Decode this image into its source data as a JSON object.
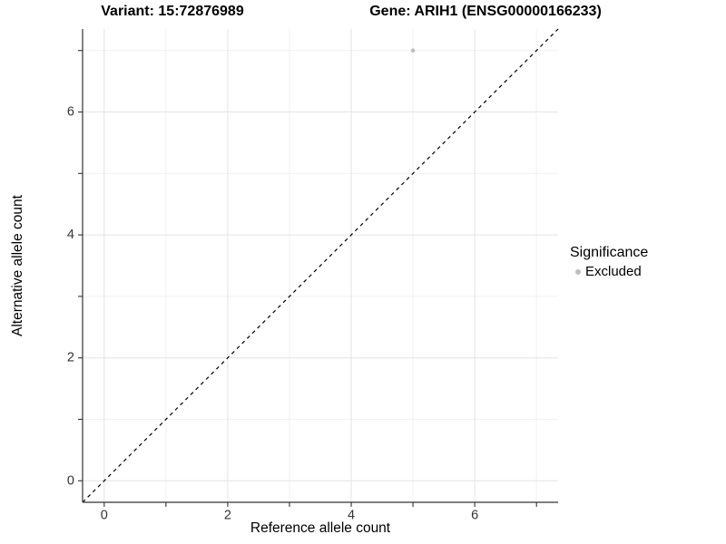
{
  "figure": {
    "title_left": "Variant: 15:72876989",
    "title_right": "Gene: ARIH1 (ENSG00000166233)"
  },
  "chart_data": {
    "type": "scatter",
    "title": "Variant: 15:72876989   Gene: ARIH1 (ENSG00000166233)",
    "xlabel": "Reference allele count",
    "ylabel": "Alternative allele count",
    "xlim": [
      -0.35,
      7.35
    ],
    "ylim": [
      -0.35,
      7.35
    ],
    "x_major_ticks": [
      0,
      2,
      4,
      6
    ],
    "x_minor_ticks": [
      1,
      3,
      5,
      7
    ],
    "y_major_ticks": [
      0,
      2,
      4,
      6
    ],
    "y_minor_ticks": [
      1,
      3,
      5,
      7
    ],
    "grid": "major and minor gridlines, no top/right border, left and bottom axis lines only",
    "identity_line": {
      "style": "dashed",
      "from": [
        -0.35,
        -0.35
      ],
      "to": [
        7.35,
        7.35
      ],
      "color": "#000000"
    },
    "series": [
      {
        "name": "Excluded",
        "color": "#bebebe",
        "points": [
          {
            "x": 5,
            "y": 7
          }
        ]
      }
    ],
    "legend": {
      "title": "Significance",
      "position": "right",
      "items": [
        {
          "label": "Excluded",
          "color": "#bebebe"
        }
      ]
    },
    "colors": {
      "background": "#ffffff",
      "grid_major": "#e4e4e4",
      "grid_minor": "#f1f1f1",
      "axis_line": "#333333",
      "tick_mark": "#333333",
      "tick_label": "#333333"
    }
  }
}
